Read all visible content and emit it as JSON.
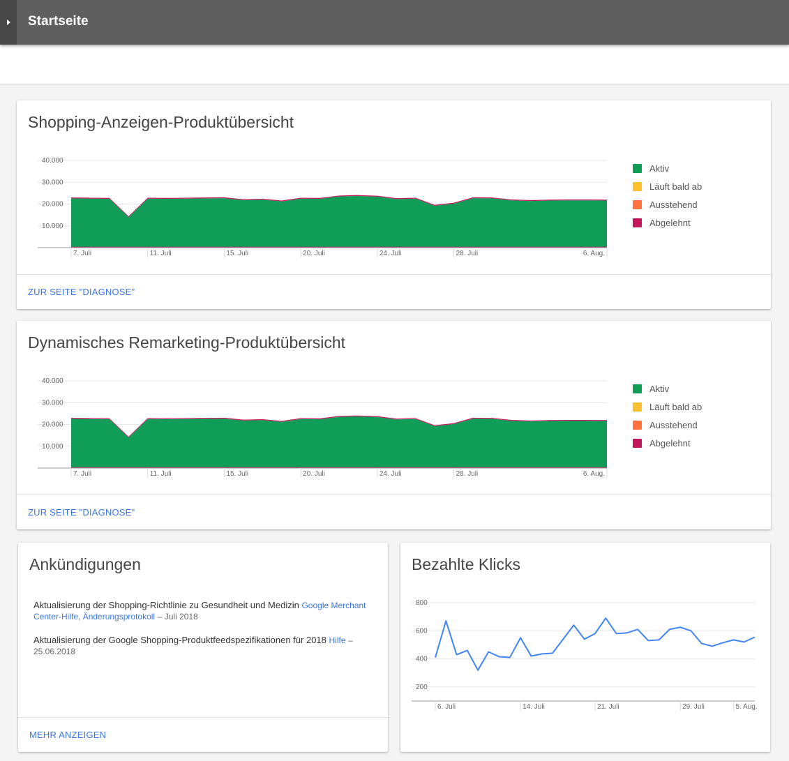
{
  "topbar": {
    "title": "Startseite"
  },
  "colors": {
    "active": "#0f9d58",
    "expiring": "#fbc02d",
    "pending": "#ff7043",
    "rejected": "#c2185b",
    "line": "#4285f4",
    "link": "#3b78e7"
  },
  "shopping": {
    "title": "Shopping-Anzeigen-Produktübersicht",
    "footer_link": "ZUR SEITE \"DIAGNOSE\"",
    "legend": [
      {
        "label": "Aktiv",
        "color": "#0f9d58"
      },
      {
        "label": "Läuft bald ab",
        "color": "#fbc02d"
      },
      {
        "label": "Ausstehend",
        "color": "#ff7043"
      },
      {
        "label": "Abgelehnt",
        "color": "#c2185b"
      }
    ]
  },
  "remarketing": {
    "title": "Dynamisches Remarketing-Produktübersicht",
    "footer_link": "ZUR SEITE \"DIAGNOSE\"",
    "legend": [
      {
        "label": "Aktiv",
        "color": "#0f9d58"
      },
      {
        "label": "Läuft bald ab",
        "color": "#fbc02d"
      },
      {
        "label": "Ausstehend",
        "color": "#ff7043"
      },
      {
        "label": "Abgelehnt",
        "color": "#c2185b"
      }
    ]
  },
  "announcements": {
    "title": "Ankündigungen",
    "items": [
      {
        "text": "Aktualisierung der Shopping-Richtlinie zu Gesundheit und Medizin",
        "link": "Google Merchant Center-Hilfe, Änderungsprotokoll",
        "date": "– Juli 2018"
      },
      {
        "text": "Aktualisierung der Google Shopping-Produktfeedspezifikationen für 2018",
        "link": "Hilfe",
        "date": "– 25.06.2018"
      }
    ],
    "footer_link": "MEHR ANZEIGEN"
  },
  "clicks": {
    "title": "Bezahlte Klicks"
  },
  "chart_data": [
    {
      "type": "area",
      "title": "Shopping-Anzeigen-Produktübersicht",
      "ylim": [
        0,
        40000
      ],
      "y_ticks": [
        "10.000",
        "20.000",
        "30.000",
        "40.000"
      ],
      "y_tick_values": [
        10000,
        20000,
        30000,
        40000
      ],
      "x_ticks": [
        "7. Juli",
        "11. Juli",
        "15. Juli",
        "20. Juli",
        "24. Juli",
        "28. Juli",
        "6. Aug."
      ],
      "x_tick_index": [
        0,
        4,
        8,
        12,
        16,
        20,
        28
      ],
      "grid": true,
      "legend_position": "right",
      "series": [
        {
          "name": "Aktiv",
          "values": [
            22600,
            22500,
            22400,
            14000,
            22500,
            22400,
            22500,
            22600,
            22700,
            21800,
            22000,
            21200,
            22500,
            22400,
            23500,
            23700,
            23400,
            22300,
            22500,
            19200,
            20200,
            22700,
            22600,
            21700,
            21400,
            21600,
            21700,
            21700,
            21600
          ]
        },
        {
          "name": "Läuft bald ab",
          "values": [
            0,
            0,
            0,
            0,
            0,
            0,
            0,
            0,
            0,
            0,
            0,
            0,
            0,
            0,
            0,
            0,
            0,
            0,
            0,
            0,
            0,
            0,
            0,
            0,
            0,
            0,
            0,
            0,
            0
          ]
        },
        {
          "name": "Ausstehend",
          "values": [
            0,
            0,
            0,
            0,
            0,
            0,
            0,
            0,
            0,
            0,
            0,
            0,
            0,
            0,
            0,
            0,
            0,
            0,
            0,
            0,
            0,
            0,
            0,
            0,
            0,
            0,
            0,
            0,
            0
          ]
        },
        {
          "name": "Abgelehnt",
          "values": [
            400,
            400,
            400,
            400,
            400,
            400,
            400,
            400,
            400,
            400,
            400,
            400,
            400,
            400,
            400,
            400,
            400,
            400,
            400,
            400,
            400,
            400,
            400,
            400,
            400,
            400,
            400,
            400,
            400
          ]
        }
      ]
    },
    {
      "type": "area",
      "title": "Dynamisches Remarketing-Produktübersicht",
      "ylim": [
        0,
        40000
      ],
      "y_ticks": [
        "10.000",
        "20.000",
        "30.000",
        "40.000"
      ],
      "y_tick_values": [
        10000,
        20000,
        30000,
        40000
      ],
      "x_ticks": [
        "7. Juli",
        "11. Juli",
        "15. Juli",
        "20. Juli",
        "24. Juli",
        "28. Juli",
        "6. Aug."
      ],
      "x_tick_index": [
        0,
        4,
        8,
        12,
        16,
        20,
        28
      ],
      "grid": true,
      "legend_position": "right",
      "series": [
        {
          "name": "Aktiv",
          "values": [
            22600,
            22500,
            22400,
            14000,
            22500,
            22400,
            22500,
            22600,
            22700,
            21800,
            22000,
            21200,
            22500,
            22400,
            23500,
            23700,
            23400,
            22300,
            22500,
            19200,
            20200,
            22700,
            22600,
            21700,
            21400,
            21600,
            21700,
            21700,
            21600
          ]
        },
        {
          "name": "Läuft bald ab",
          "values": [
            0,
            0,
            0,
            0,
            0,
            0,
            0,
            0,
            0,
            0,
            0,
            0,
            0,
            0,
            0,
            0,
            0,
            0,
            0,
            0,
            0,
            0,
            0,
            0,
            0,
            0,
            0,
            0,
            0
          ]
        },
        {
          "name": "Ausstehend",
          "values": [
            0,
            0,
            0,
            0,
            0,
            0,
            0,
            0,
            0,
            0,
            0,
            0,
            0,
            0,
            0,
            0,
            0,
            0,
            0,
            0,
            0,
            0,
            0,
            0,
            0,
            0,
            0,
            0,
            0
          ]
        },
        {
          "name": "Abgelehnt",
          "values": [
            400,
            400,
            400,
            400,
            400,
            400,
            400,
            400,
            400,
            400,
            400,
            400,
            400,
            400,
            400,
            400,
            400,
            400,
            400,
            400,
            400,
            400,
            400,
            400,
            400,
            400,
            400,
            400,
            400
          ]
        }
      ]
    },
    {
      "type": "line",
      "title": "Bezahlte Klicks",
      "ylim": [
        100,
        800
      ],
      "y_ticks": [
        "200",
        "400",
        "600",
        "800"
      ],
      "y_tick_values": [
        200,
        400,
        600,
        800
      ],
      "x_ticks": [
        "6. Juli",
        "14. Juli",
        "21. Juli",
        "29. Juli",
        "5. Aug."
      ],
      "x_tick_index": [
        0,
        8,
        15,
        23,
        28
      ],
      "grid": true,
      "series": [
        {
          "name": "",
          "values": [
            410,
            670,
            430,
            460,
            320,
            450,
            415,
            410,
            550,
            420,
            435,
            440,
            540,
            640,
            540,
            580,
            690,
            580,
            585,
            610,
            530,
            535,
            610,
            625,
            600,
            510,
            490,
            515,
            535,
            520,
            555
          ]
        }
      ]
    }
  ]
}
